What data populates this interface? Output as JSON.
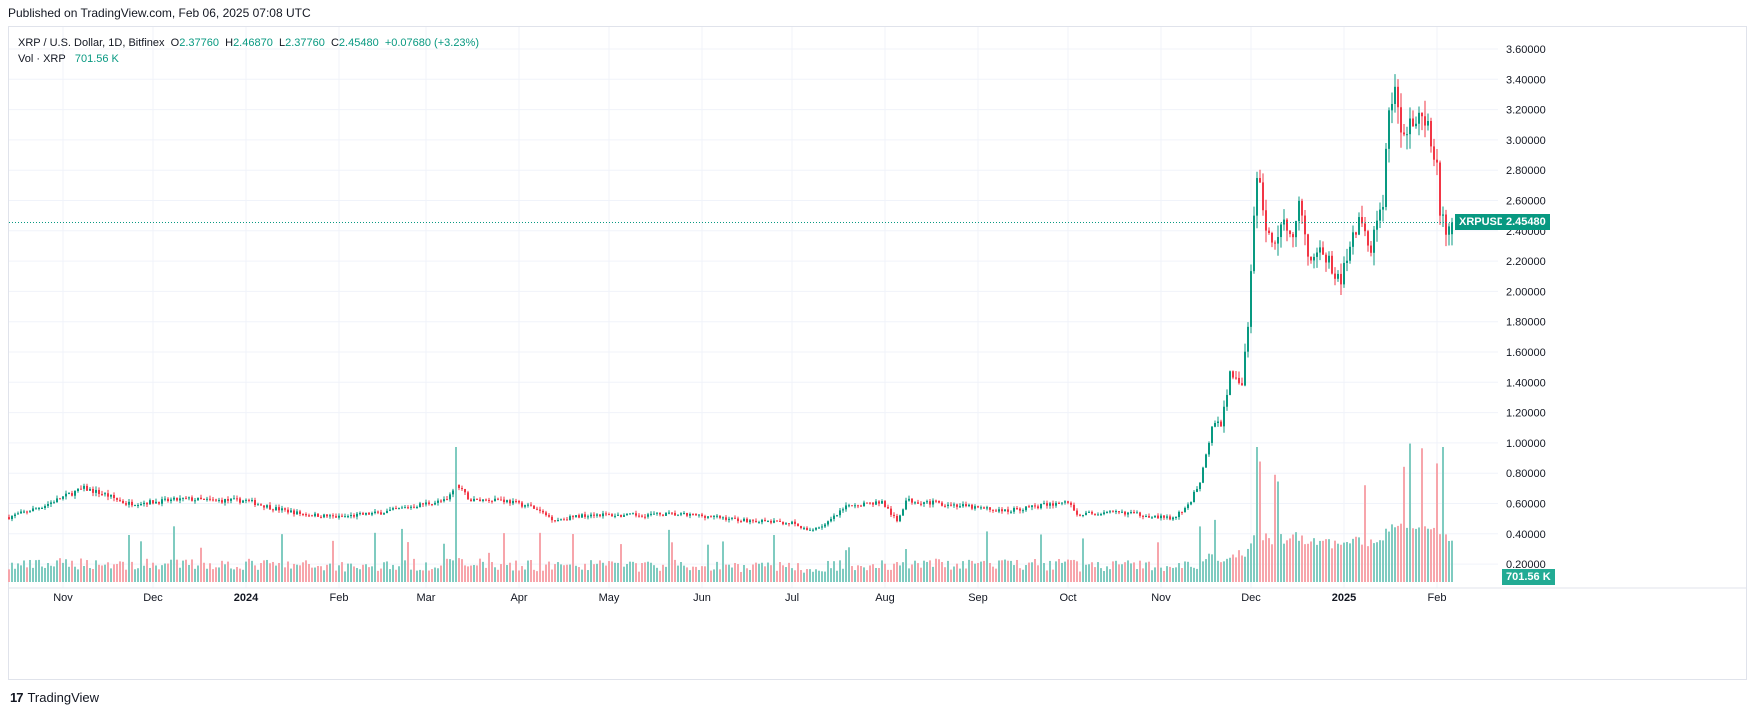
{
  "header": {
    "published": "Published on TradingView.com, Feb 06, 2025 07:08 UTC"
  },
  "legend": {
    "symbol": "XRP / U.S. Dollar, 1D, Bitfinex",
    "open_label": "O",
    "open": "2.37760",
    "high_label": "H",
    "high": "2.46870",
    "low_label": "L",
    "low": "2.37760",
    "close_label": "C",
    "close": "2.45480",
    "change": "+0.07680 (+3.23%)",
    "vol_label": "Vol · XRP",
    "vol_value": "701.56 K"
  },
  "price_tag": {
    "symbol": "XRPUSD",
    "price": "2.45480"
  },
  "volume_tag": "701.56 K",
  "footer": {
    "brand": "TradingView",
    "logo": "tv-logo-icon"
  },
  "colors": {
    "up": "#089981",
    "down": "#f23645",
    "up_vol": "#7fcbc0",
    "down_vol": "#f7a5ab",
    "grid": "#f0f3fa"
  },
  "chart_data": {
    "type": "candlestick",
    "symbol": "XRP / U.S. Dollar",
    "interval": "1D",
    "exchange": "Bitfinex",
    "y_ticks": [
      "3.60000",
      "3.40000",
      "3.20000",
      "3.00000",
      "2.80000",
      "2.60000",
      "2.40000",
      "2.20000",
      "2.00000",
      "1.80000",
      "1.60000",
      "1.40000",
      "1.20000",
      "1.00000",
      "0.80000",
      "0.60000",
      "0.40000",
      "0.20000"
    ],
    "ylim": [
      0.08,
      3.68
    ],
    "x_ticks": [
      "Nov",
      "Dec",
      "2024",
      "Feb",
      "Mar",
      "Apr",
      "May",
      "Jun",
      "Jul",
      "Aug",
      "Sep",
      "Oct",
      "Nov",
      "Dec",
      "2025",
      "Feb"
    ],
    "x_tick_dates": [
      "2023-11-01",
      "2023-12-01",
      "2024-01-01",
      "2024-02-01",
      "2024-03-01",
      "2024-04-01",
      "2024-05-01",
      "2024-06-01",
      "2024-07-01",
      "2024-08-01",
      "2024-09-01",
      "2024-10-01",
      "2024-11-01",
      "2024-12-01",
      "2025-01-01",
      "2025-02-01"
    ],
    "grid": true,
    "last_price": 2.4548,
    "close_keypoints": [
      [
        "2023-10-14",
        0.51
      ],
      [
        "2023-10-25",
        0.58
      ],
      [
        "2023-11-03",
        0.66
      ],
      [
        "2023-11-08",
        0.7
      ],
      [
        "2023-11-15",
        0.66
      ],
      [
        "2023-11-22",
        0.6
      ],
      [
        "2023-12-01",
        0.61
      ],
      [
        "2023-12-12",
        0.63
      ],
      [
        "2023-12-20",
        0.62
      ],
      [
        "2024-01-01",
        0.62
      ],
      [
        "2024-01-10",
        0.57
      ],
      [
        "2024-01-20",
        0.53
      ],
      [
        "2024-02-01",
        0.51
      ],
      [
        "2024-02-15",
        0.54
      ],
      [
        "2024-03-01",
        0.6
      ],
      [
        "2024-03-08",
        0.62
      ],
      [
        "2024-03-11",
        0.72
      ],
      [
        "2024-03-16",
        0.62
      ],
      [
        "2024-03-25",
        0.63
      ],
      [
        "2024-04-05",
        0.58
      ],
      [
        "2024-04-13",
        0.49
      ],
      [
        "2024-04-25",
        0.53
      ],
      [
        "2024-05-05",
        0.52
      ],
      [
        "2024-05-20",
        0.53
      ],
      [
        "2024-06-01",
        0.52
      ],
      [
        "2024-06-15",
        0.49
      ],
      [
        "2024-07-01",
        0.47
      ],
      [
        "2024-07-06",
        0.42
      ],
      [
        "2024-07-12",
        0.46
      ],
      [
        "2024-07-20",
        0.59
      ],
      [
        "2024-07-31",
        0.61
      ],
      [
        "2024-08-05",
        0.48
      ],
      [
        "2024-08-08",
        0.62
      ],
      [
        "2024-08-20",
        0.6
      ],
      [
        "2024-09-01",
        0.57
      ],
      [
        "2024-09-10",
        0.55
      ],
      [
        "2024-09-20",
        0.58
      ],
      [
        "2024-10-01",
        0.61
      ],
      [
        "2024-10-04",
        0.53
      ],
      [
        "2024-10-20",
        0.54
      ],
      [
        "2024-11-05",
        0.5
      ],
      [
        "2024-11-10",
        0.58
      ],
      [
        "2024-11-14",
        0.75
      ],
      [
        "2024-11-18",
        1.1
      ],
      [
        "2024-11-21",
        1.13
      ],
      [
        "2024-11-24",
        1.45
      ],
      [
        "2024-11-28",
        1.4
      ],
      [
        "2024-11-30",
        1.75
      ],
      [
        "2024-12-02",
        2.45
      ],
      [
        "2024-12-03",
        2.8
      ],
      [
        "2024-12-05",
        2.52
      ],
      [
        "2024-12-08",
        2.3
      ],
      [
        "2024-12-12",
        2.45
      ],
      [
        "2024-12-15",
        2.4
      ],
      [
        "2024-12-17",
        2.6
      ],
      [
        "2024-12-20",
        2.25
      ],
      [
        "2024-12-25",
        2.25
      ],
      [
        "2024-12-31",
        2.05
      ],
      [
        "2025-01-03",
        2.35
      ],
      [
        "2025-01-06",
        2.45
      ],
      [
        "2025-01-10",
        2.3
      ],
      [
        "2025-01-14",
        2.6
      ],
      [
        "2025-01-16",
        3.22
      ],
      [
        "2025-01-18",
        3.28
      ],
      [
        "2025-01-20",
        3.1
      ],
      [
        "2025-01-24",
        3.12
      ],
      [
        "2025-01-27",
        3.1
      ],
      [
        "2025-01-29",
        3.05
      ],
      [
        "2025-02-01",
        2.8
      ],
      [
        "2025-02-02",
        2.55
      ],
      [
        "2025-02-04",
        2.4
      ],
      [
        "2025-02-05",
        2.38
      ],
      [
        "2025-02-06",
        2.4548
      ]
    ],
    "volume": {
      "name": "Vol · XRP",
      "last": "701.56 K",
      "max_spike_dates": [
        "2024-03-11",
        "2024-12-03",
        "2025-02-03"
      ]
    }
  }
}
